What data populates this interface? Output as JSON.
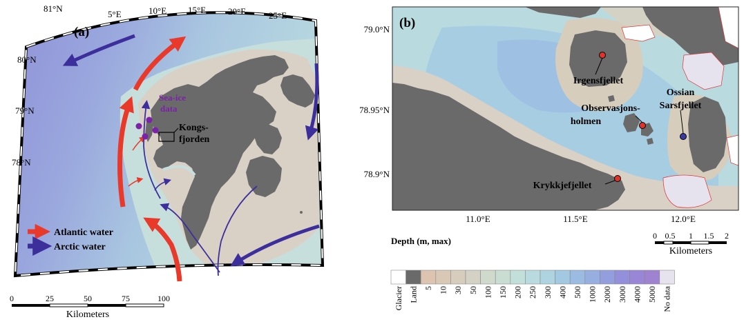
{
  "panel_a": {
    "label": "(a)",
    "lat_labels": [
      "81°N",
      "80°N",
      "79°N",
      "78°N"
    ],
    "lon_labels": [
      "5°E",
      "10°E",
      "15°E",
      "20°E",
      "25°E"
    ],
    "seaice_label": [
      "Sea-ice",
      "data"
    ],
    "kongs_label": [
      "Kongs-",
      "fjorden"
    ],
    "legend": {
      "atlantic": "Atlantic water",
      "arctic": "Arctic water"
    },
    "scalebar": {
      "ticks": [
        "0",
        "25",
        "50",
        "75",
        "100"
      ],
      "unit": "Kilometers"
    }
  },
  "panel_b": {
    "label": "(b)",
    "lat_labels": [
      "79.0°N",
      "78.95°N",
      "78.9°N"
    ],
    "lon_labels": [
      "11.0°E",
      "11.5°E",
      "12.0°E"
    ],
    "sites": [
      {
        "name": "Irgensfjellet",
        "color": "#e0342a"
      },
      {
        "name": "Observasjons-",
        "name2": "holmen",
        "color": "#e0342a"
      },
      {
        "name": "Ossian",
        "name2": "Sarsfjellet",
        "color": "#3a3aa0"
      },
      {
        "name": "Krykkjefjellet",
        "color": "#e0342a"
      }
    ],
    "scalebar": {
      "ticks": [
        "0",
        "0.5",
        "1",
        "1.5",
        "2"
      ],
      "unit": "Kilometers"
    }
  },
  "depth_legend": {
    "title": "Depth (m, max)",
    "classes": [
      {
        "label": "Glacier",
        "color": "#ffffff"
      },
      {
        "label": "Land",
        "color": "#6a6a6a"
      },
      {
        "label": "5",
        "color": "#dcc4b0"
      },
      {
        "label": "10",
        "color": "#d9c8b6"
      },
      {
        "label": "30",
        "color": "#d6cdbd"
      },
      {
        "label": "50",
        "color": "#d4d2c4"
      },
      {
        "label": "100",
        "color": "#cfd9cc"
      },
      {
        "label": "150",
        "color": "#c9ddd3"
      },
      {
        "label": "200",
        "color": "#c2dfd9"
      },
      {
        "label": "250",
        "color": "#b9dbe0"
      },
      {
        "label": "300",
        "color": "#aed4e2"
      },
      {
        "label": "400",
        "color": "#a3c8e2"
      },
      {
        "label": "500",
        "color": "#9cbbe2"
      },
      {
        "label": "1000",
        "color": "#97aee0"
      },
      {
        "label": "2000",
        "color": "#939ede"
      },
      {
        "label": "3000",
        "color": "#948fda"
      },
      {
        "label": "4000",
        "color": "#9a86d6"
      },
      {
        "label": "5000",
        "color": "#9f82d0"
      },
      {
        "label": "No data",
        "color": "#e6e3ef"
      }
    ]
  },
  "colors": {
    "atlantic": "#e8392b",
    "arctic": "#3c2f9c",
    "seaice": "#7b22a8"
  }
}
